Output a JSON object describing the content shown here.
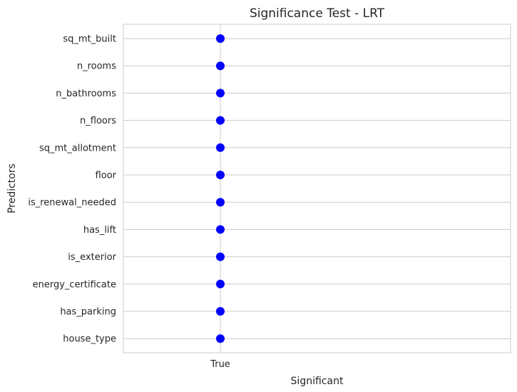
{
  "chart_data": {
    "type": "scatter",
    "title": "Significance Test - LRT",
    "xlabel": "Significant",
    "ylabel": "Predictors",
    "x_categories": [
      "True"
    ],
    "y_categories": [
      "sq_mt_built",
      "n_rooms",
      "n_bathrooms",
      "n_floors",
      "sq_mt_allotment",
      "floor",
      "is_renewal_needed",
      "has_lift",
      "is_exterior",
      "energy_certificate",
      "has_parking",
      "house_type"
    ],
    "points": [
      {
        "x": "True",
        "y": "sq_mt_built"
      },
      {
        "x": "True",
        "y": "n_rooms"
      },
      {
        "x": "True",
        "y": "n_bathrooms"
      },
      {
        "x": "True",
        "y": "n_floors"
      },
      {
        "x": "True",
        "y": "sq_mt_allotment"
      },
      {
        "x": "True",
        "y": "floor"
      },
      {
        "x": "True",
        "y": "is_renewal_needed"
      },
      {
        "x": "True",
        "y": "has_lift"
      },
      {
        "x": "True",
        "y": "is_exterior"
      },
      {
        "x": "True",
        "y": "energy_certificate"
      },
      {
        "x": "True",
        "y": "has_parking"
      },
      {
        "x": "True",
        "y": "house_type"
      }
    ],
    "grid": true,
    "legend": "none",
    "colors": {
      "marker": "#0000ff",
      "grid": "#cccccc",
      "text": "#262626"
    }
  }
}
